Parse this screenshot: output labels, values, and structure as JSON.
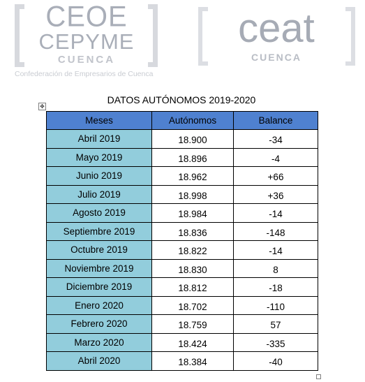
{
  "logos": {
    "ceoe": {
      "line1": "CEOE",
      "line2": "CEPYME",
      "line3": "CUENCA",
      "tagline": "Confederación de Empresarios de Cuenca"
    },
    "ceat": {
      "line1": "ceat",
      "line2": "CUENCA"
    }
  },
  "document": {
    "title": "DATOS AUTÓNOMOS 2019-2020"
  },
  "table": {
    "headers": [
      "Meses",
      "Autónomos",
      "Balance"
    ],
    "rows": [
      {
        "month": "Abril 2019",
        "autonomos": "18.900",
        "balance": "-34"
      },
      {
        "month": "Mayo 2019",
        "autonomos": "18.896",
        "balance": "-4"
      },
      {
        "month": "Junio 2019",
        "autonomos": "18.962",
        "balance": "+66"
      },
      {
        "month": "Julio 2019",
        "autonomos": "18.998",
        "balance": "+36"
      },
      {
        "month": "Agosto 2019",
        "autonomos": "18.984",
        "balance": "-14"
      },
      {
        "month": "Septiembre 2019",
        "autonomos": "18.836",
        "balance": "-148"
      },
      {
        "month": "Octubre 2019",
        "autonomos": "18.822",
        "balance": "-14"
      },
      {
        "month": "Noviembre 2019",
        "autonomos": "18.830",
        "balance": "8"
      },
      {
        "month": "Diciembre 2019",
        "autonomos": "18.812",
        "balance": "-18"
      },
      {
        "month": "Enero 2020",
        "autonomos": "18.702",
        "balance": "-110"
      },
      {
        "month": "Febrero 2020",
        "autonomos": "18.759",
        "balance": "57"
      },
      {
        "month": "Marzo 2020",
        "autonomos": "18.424",
        "balance": "-335"
      },
      {
        "month": "Abril 2020",
        "autonomos": "18.384",
        "balance": "-40"
      }
    ]
  },
  "colors": {
    "header_bg": "#4f81d0",
    "month_bg": "#92cddc",
    "logo_gray": "#a9aeb8"
  },
  "icons": {
    "table_move": "move-arrows-icon",
    "table_resize": "resize-handle-icon"
  }
}
